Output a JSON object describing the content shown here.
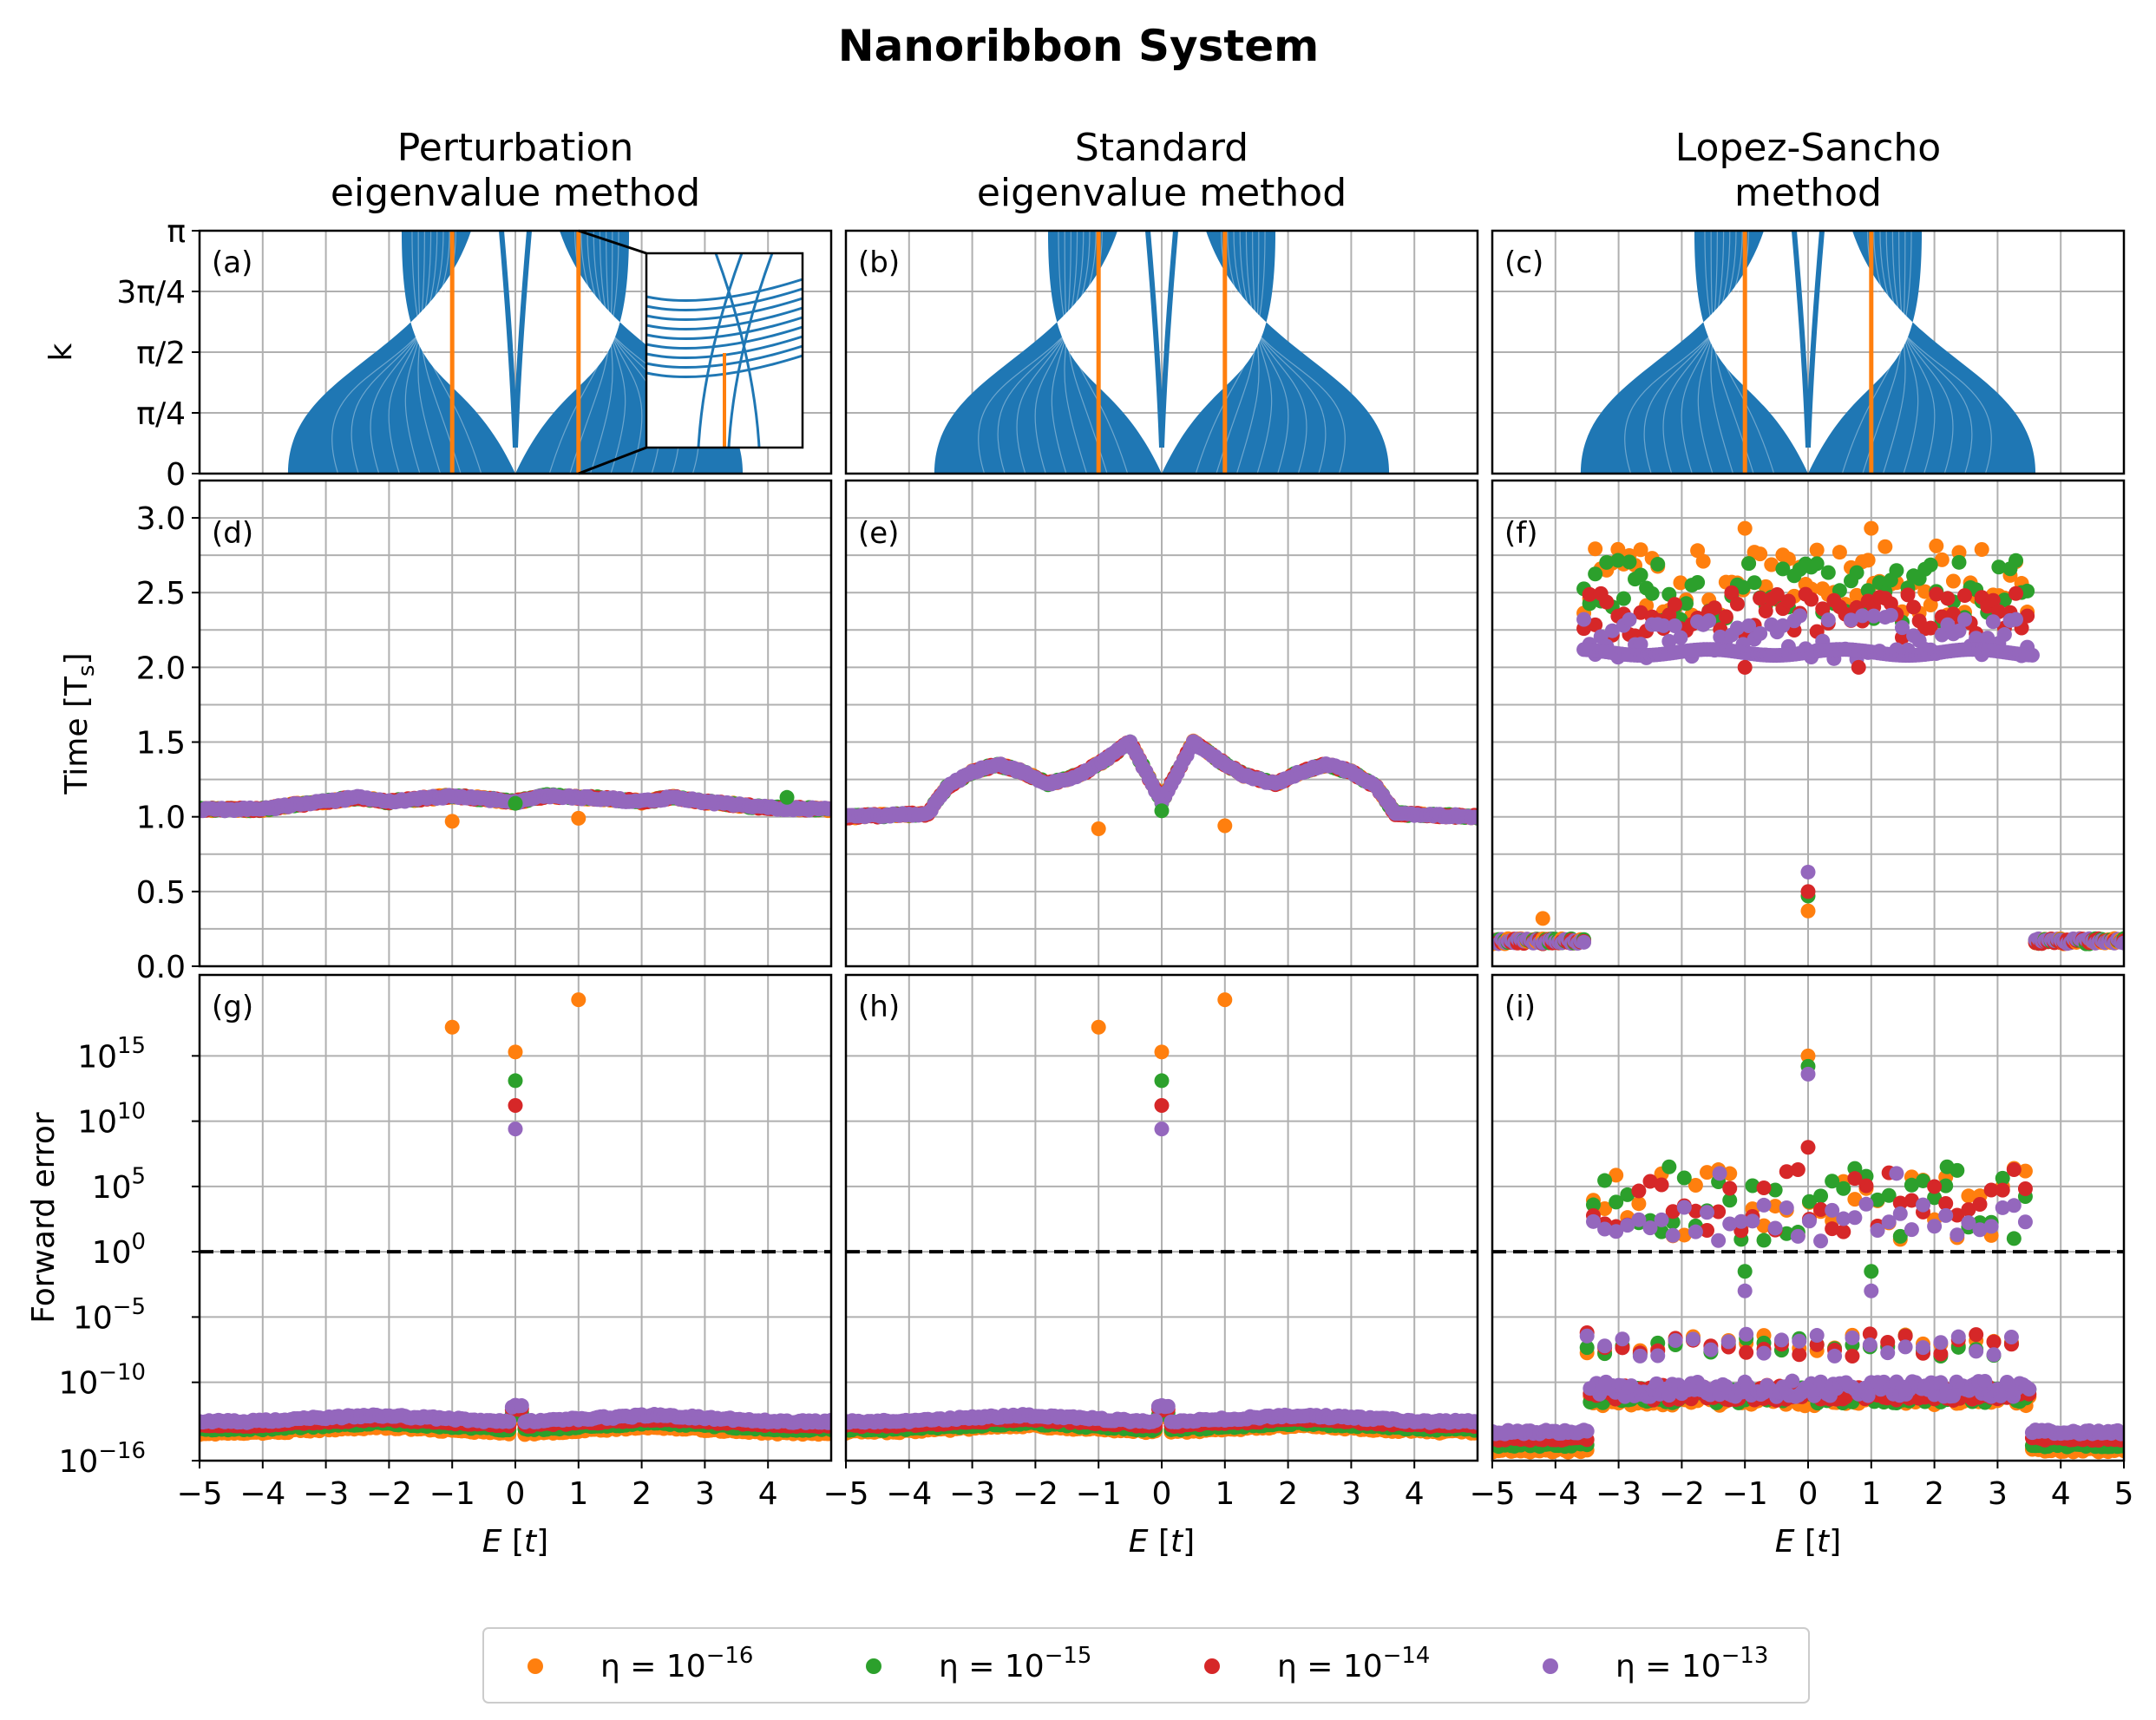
{
  "title": "Nanoribbon System",
  "columns": [
    {
      "title_lines": [
        "Perturbation",
        "eigenvalue method"
      ]
    },
    {
      "title_lines": [
        "Standard",
        "eigenvalue method"
      ]
    },
    {
      "title_lines": [
        "Lopez-Sancho",
        "method"
      ]
    }
  ],
  "colors": {
    "band": "#1f77b4",
    "marker_line": "#ff7f0e",
    "eta_16": "#ff7f0e",
    "eta_15": "#2ca02c",
    "eta_14": "#d62728",
    "eta_13": "#9467bd",
    "grid": "#b0b0b0"
  },
  "legend": {
    "placement": "bottom-center",
    "entries": [
      {
        "base": "η = 10",
        "exp": "−16",
        "color": "#ff7f0e"
      },
      {
        "base": "η = 10",
        "exp": "−15",
        "color": "#2ca02c"
      },
      {
        "base": "η = 10",
        "exp": "−14",
        "color": "#d62728"
      },
      {
        "base": "η = 10",
        "exp": "−13",
        "color": "#9467bd"
      }
    ]
  },
  "chart_data": [
    {
      "type": "line",
      "row": "band structure",
      "panel_labels": [
        "(a)",
        "(b)",
        "(c)"
      ],
      "ylabel": "k",
      "xlim": [
        -5,
        5
      ],
      "ylim": [
        0,
        3.14159
      ],
      "y_ticks": [
        0,
        0.785398,
        1.570796,
        2.356194,
        3.14159
      ],
      "y_tick_labels": [
        "0",
        "π/4",
        "π/2",
        "3π/4",
        "π"
      ],
      "x_ticks": [
        -5,
        -4,
        -3,
        -2,
        -1,
        0,
        1,
        2,
        3,
        4,
        5
      ],
      "band_edges_at_k": {
        "k0_inner": 0,
        "k0_outer": 3.6,
        "kpi_inner": 1.8,
        "kpi_outer": 0.7
      },
      "vertical_lines_E": [
        -1,
        1
      ],
      "inset": {
        "panel": "(a)",
        "zoom_center_E": 1,
        "zoom_region": "near k=0"
      }
    },
    {
      "type": "scatter",
      "row": "time",
      "panel_labels": [
        "(d)",
        "(e)",
        "(f)"
      ],
      "ylabel": "Time [T",
      "ylabel_sub": "s",
      "ylabel_end": "]",
      "ylim": [
        0,
        3.25
      ],
      "y_ticks": [
        0,
        0.5,
        1.0,
        1.5,
        2.0,
        2.5,
        3.0
      ],
      "y_tick_labels": [
        "0.0",
        "0.5",
        "1.0",
        "1.5",
        "2.0",
        "2.5",
        "3.0"
      ],
      "series_names": [
        "η = 10^-16",
        "η = 10^-15",
        "η = 10^-14",
        "η = 10^-13"
      ],
      "panels": [
        {
          "profile_E": [
            -5,
            -4,
            -3.5,
            -3,
            -2.5,
            -2,
            -1.5,
            -1,
            -0.5,
            0,
            0.5,
            1,
            1.5,
            2,
            2.5,
            3,
            3.5,
            4,
            5
          ],
          "profile_T": [
            1.05,
            1.05,
            1.08,
            1.1,
            1.13,
            1.1,
            1.12,
            1.14,
            1.12,
            1.1,
            1.14,
            1.13,
            1.12,
            1.1,
            1.13,
            1.1,
            1.08,
            1.06,
            1.05
          ],
          "outliers": [
            {
              "E": -1,
              "T": 0.97,
              "series": 0
            },
            {
              "E": 1,
              "T": 0.99,
              "series": 0
            },
            {
              "E": 4.3,
              "T": 1.13,
              "series": 1
            },
            {
              "E": 0,
              "T": 1.09,
              "series": 1
            }
          ]
        },
        {
          "profile_E": [
            -5,
            -3.7,
            -3.4,
            -3,
            -2.6,
            -2.2,
            -1.8,
            -1.3,
            -0.9,
            -0.5,
            0,
            0.5,
            0.9,
            1.3,
            1.8,
            2.2,
            2.6,
            3,
            3.4,
            3.7,
            5
          ],
          "profile_T": [
            1.0,
            1.02,
            1.2,
            1.3,
            1.35,
            1.3,
            1.22,
            1.28,
            1.38,
            1.5,
            1.1,
            1.5,
            1.38,
            1.28,
            1.22,
            1.3,
            1.35,
            1.3,
            1.2,
            1.02,
            1.0
          ],
          "outliers": [
            {
              "E": -1,
              "T": 0.92,
              "series": 0
            },
            {
              "E": 1,
              "T": 0.94,
              "series": 0
            },
            {
              "E": 0,
              "T": 1.04,
              "series": 1
            }
          ]
        },
        {
          "series_bands": [
            {
              "series": 0,
              "T_min": 2.35,
              "T_max": 2.82
            },
            {
              "series": 1,
              "T_min": 2.3,
              "T_max": 2.72
            },
            {
              "series": 2,
              "T_min": 2.2,
              "T_max": 2.5
            },
            {
              "series": 3,
              "T_min": 2.05,
              "T_max": 2.35
            }
          ],
          "band_E_range": [
            -3.55,
            3.55
          ],
          "outside_T": [
            0.15,
            0.22
          ],
          "outliers": [
            {
              "E": -4.2,
              "T": 0.32,
              "series": 0
            },
            {
              "E": -1,
              "T": 2.93,
              "series": 0
            },
            {
              "E": 1,
              "T": 2.93,
              "series": 0
            },
            {
              "E": -1,
              "T": 2.0,
              "series": 2
            },
            {
              "E": 0.8,
              "T": 2.0,
              "series": 2
            },
            {
              "E": 0,
              "T": 0.37,
              "series": 0
            },
            {
              "E": 0,
              "T": 0.47,
              "series": 1
            },
            {
              "E": 0,
              "T": 0.5,
              "series": 2
            },
            {
              "E": 0,
              "T": 0.63,
              "series": 3
            }
          ]
        }
      ]
    },
    {
      "type": "scatter",
      "row": "forward error",
      "panel_labels": [
        "(g)",
        "(h)",
        "(i)"
      ],
      "ylabel": "Forward error",
      "y_scale": "log",
      "ylim_log10": [
        -16,
        21.2
      ],
      "y_ticks_log10": [
        -16,
        -10,
        -5,
        0,
        5,
        10,
        15
      ],
      "y_tick_labels": [
        {
          "base": "10",
          "exp": "−16"
        },
        {
          "base": "10",
          "exp": "−10"
        },
        {
          "base": "10",
          "exp": "−5"
        },
        {
          "base": "10",
          "exp": "0"
        },
        {
          "base": "10",
          "exp": "5"
        },
        {
          "base": "10",
          "exp": "10"
        },
        {
          "base": "10",
          "exp": "15"
        }
      ],
      "reference_line_log10": 0,
      "xlabel": "E [t]",
      "x_ticks": [
        -5,
        -4,
        -3,
        -2,
        -1,
        0,
        1,
        2,
        3,
        4,
        5
      ],
      "x_tick_labels": [
        "−5",
        "−4",
        "−3",
        "−2",
        "−1",
        "0",
        "1",
        "2",
        "3",
        "4",
        "5"
      ],
      "panels": [
        {
          "baseline_log10": [
            -13.9,
            -13.6,
            -13.3,
            -13.0
          ],
          "outliers": [
            {
              "E": -1,
              "log10": 17.2,
              "series": 0
            },
            {
              "E": 1,
              "log10": 19.3,
              "series": 0
            },
            {
              "E": 0,
              "log10": 15.3,
              "series": 0
            },
            {
              "E": 0,
              "log10": 13.1,
              "series": 1
            },
            {
              "E": 0,
              "log10": 11.2,
              "series": 2
            },
            {
              "E": 0,
              "log10": 9.4,
              "series": 3
            }
          ]
        },
        {
          "baseline_log10": [
            -13.8,
            -13.6,
            -13.3,
            -13.0
          ],
          "outliers": [
            {
              "E": -1,
              "log10": 17.2,
              "series": 0
            },
            {
              "E": 1,
              "log10": 19.3,
              "series": 0
            },
            {
              "E": 0,
              "log10": 15.3,
              "series": 0
            },
            {
              "E": 0,
              "log10": 13.1,
              "series": 1
            },
            {
              "E": 0,
              "log10": 11.2,
              "series": 2
            },
            {
              "E": 0,
              "log10": 9.4,
              "series": 3
            }
          ]
        },
        {
          "inner_E_range": [
            -3.5,
            3.5
          ],
          "inner_baseline_log10": [
            -11.2,
            -11.0,
            -10.8,
            -10.5
          ],
          "outer_baseline_log10": [
            -15.2,
            -14.8,
            -14.3,
            -13.8
          ],
          "upper_cluster_log10": [
            0.8,
            6.5
          ],
          "outliers": [
            {
              "E": 0,
              "log10": 15.0,
              "series": 0
            },
            {
              "E": 0,
              "log10": 14.2,
              "series": 1
            },
            {
              "E": 0,
              "log10": 13.6,
              "series": 3
            },
            {
              "E": 0,
              "log10": 8.0,
              "series": 2
            },
            {
              "E": -1,
              "log10": -3.0,
              "series": 3
            },
            {
              "E": 1,
              "log10": -3.0,
              "series": 3
            },
            {
              "E": -1,
              "log10": -1.5,
              "series": 1
            },
            {
              "E": 1,
              "log10": -1.5,
              "series": 1
            },
            {
              "E": -1.4,
              "log10": 6.0,
              "series": 3
            },
            {
              "E": 1.4,
              "log10": 6.0,
              "series": 3
            },
            {
              "E": -2.2,
              "log10": 6.5,
              "series": 1
            },
            {
              "E": 2.2,
              "log10": 6.5,
              "series": 1
            }
          ]
        }
      ]
    }
  ]
}
